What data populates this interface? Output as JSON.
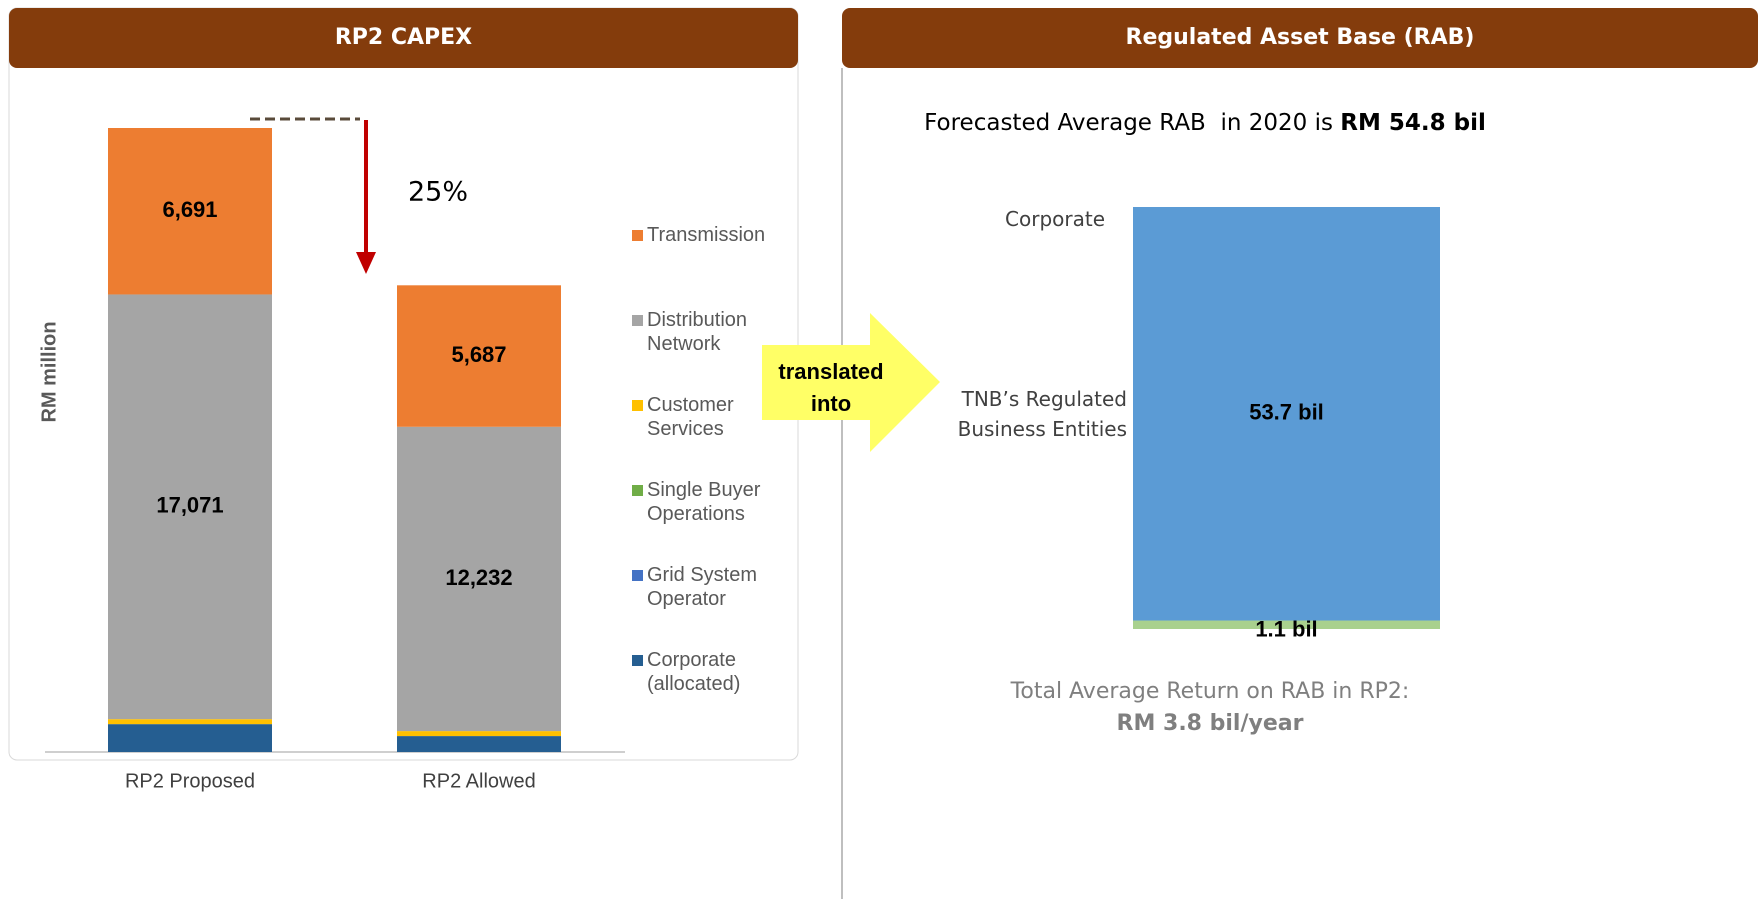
{
  "chart_data": [
    {
      "type": "stacked-bar",
      "title": "RP2 CAPEX",
      "y_label": "RM million",
      "categories": [
        "RP2 Proposed",
        "RP2 Allowed"
      ],
      "series": [
        {
          "name": "Transmission",
          "color": "#ED7D31",
          "values": [
            6691,
            5687
          ],
          "value_labels": [
            "6,691",
            "5,687"
          ]
        },
        {
          "name": "Distribution Network",
          "color": "#A5A5A5",
          "values": [
            17071,
            12232
          ],
          "value_labels": [
            "17,071",
            "12,232"
          ]
        },
        {
          "name": "Customer Services",
          "color": "#FFC000",
          "values": [
            200,
            200
          ]
        },
        {
          "name": "Single Buyer Operations",
          "color": "#70AD47",
          "values": [
            0,
            0
          ]
        },
        {
          "name": "Grid System Operator",
          "color": "#4472C4",
          "values": [
            0,
            0
          ]
        },
        {
          "name": "Corporate (allocated)",
          "color": "#255E91",
          "values": [
            1120,
            640
          ]
        }
      ],
      "annotation": "25%"
    },
    {
      "type": "stacked-bar",
      "title": "Regulated Asset Base (RAB)",
      "subtitle": "Forecasted Average RAB  in 2020 is ",
      "subtitle_emphasis": "RM 54.8 bil",
      "series": [
        {
          "name": "TNB’s Regulated Business Entities",
          "color": "#5B9BD5",
          "values": [
            53.7
          ],
          "value_labels": [
            "53.7 bil"
          ]
        },
        {
          "name": "Corporate",
          "color": "#A9D18E",
          "values": [
            1.1
          ],
          "value_labels": [
            "1.1 bil"
          ]
        }
      ],
      "footnote": "Total Average Return on RAB in RP2:",
      "footnote_emphasis": "RM 3.8 bil/year"
    }
  ],
  "connector": "translated into"
}
